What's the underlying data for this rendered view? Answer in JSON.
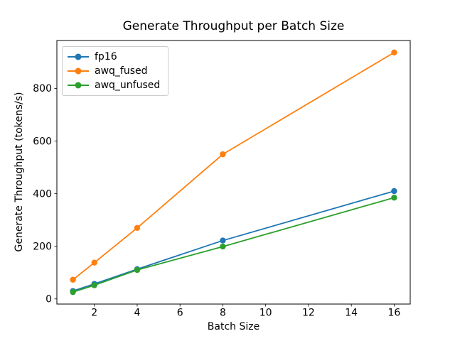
{
  "chart_data": {
    "type": "line",
    "title": "Generate Throughput per Batch Size",
    "xlabel": "Batch Size",
    "ylabel": "Generate Throughput (tokens/s)",
    "x": [
      1,
      2,
      4,
      8,
      16
    ],
    "series": [
      {
        "name": "fp16",
        "color": "#1f77b4",
        "values": [
          30,
          57,
          113,
          222,
          410
        ]
      },
      {
        "name": "awq_fused",
        "color": "#ff7f0e",
        "values": [
          73,
          138,
          270,
          550,
          937
        ]
      },
      {
        "name": "awq_unfused",
        "color": "#2ca02c",
        "values": [
          26,
          52,
          110,
          199,
          385
        ]
      }
    ],
    "xlim": [
      0.25,
      16.75
    ],
    "ylim": [
      -19.6,
      982.6
    ],
    "xticks": [
      2,
      4,
      6,
      8,
      10,
      12,
      14,
      16
    ],
    "yticks": [
      0,
      200,
      400,
      600,
      800
    ],
    "legend_position": "upper left",
    "grid": false,
    "marker": "circle",
    "background_color": "#ffffff",
    "frame_color": "#000000"
  }
}
